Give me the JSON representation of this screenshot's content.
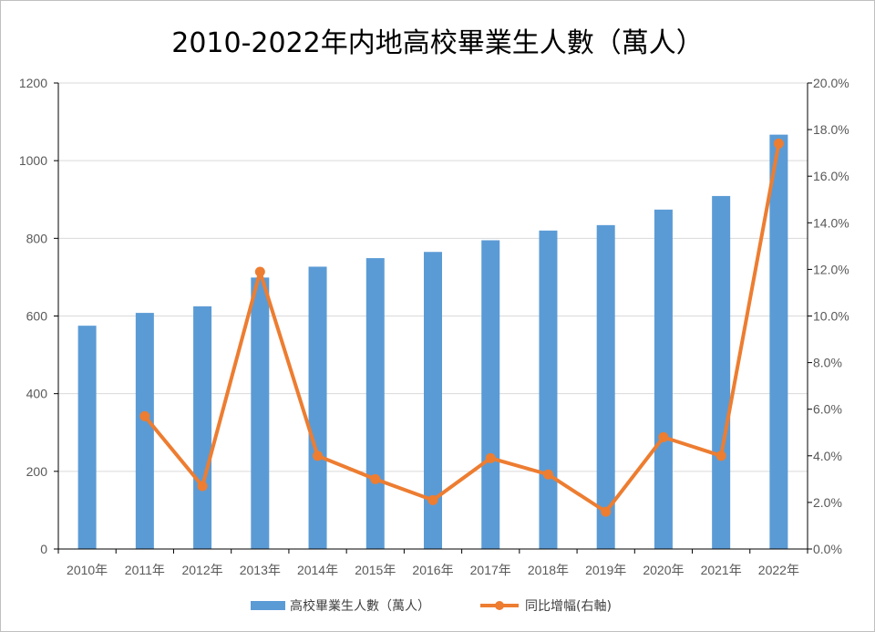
{
  "chart_data": {
    "type": "bar+line",
    "title": "2010-2022年内地高校畢業生人數（萬人）",
    "categories": [
      "2010年",
      "2011年",
      "2012年",
      "2013年",
      "2014年",
      "2015年",
      "2016年",
      "2017年",
      "2018年",
      "2019年",
      "2020年",
      "2021年",
      "2022年"
    ],
    "series": [
      {
        "name": "高校畢業生人數（萬人）",
        "type": "bar",
        "axis": "left",
        "color": "#5b9bd5",
        "values": [
          575,
          608,
          625,
          699,
          727,
          749,
          765,
          795,
          820,
          834,
          874,
          909,
          1067
        ]
      },
      {
        "name": "同比增幅(右軸)",
        "type": "line",
        "axis": "right",
        "color": "#ed7d31",
        "values": [
          null,
          5.7,
          2.7,
          11.9,
          4.0,
          3.0,
          2.1,
          3.9,
          3.2,
          1.6,
          4.8,
          4.0,
          17.4
        ]
      }
    ],
    "y_left": {
      "min": 0,
      "max": 1200,
      "step": 200,
      "ticks": [
        "0",
        "200",
        "400",
        "600",
        "800",
        "1000",
        "1200"
      ]
    },
    "y_right": {
      "min": 0,
      "max": 20,
      "step": 2,
      "ticks": [
        "0.0%",
        "2.0%",
        "4.0%",
        "6.0%",
        "8.0%",
        "10.0%",
        "12.0%",
        "14.0%",
        "16.0%",
        "18.0%",
        "20.0%"
      ]
    },
    "grid": true,
    "legend_position": "bottom"
  }
}
